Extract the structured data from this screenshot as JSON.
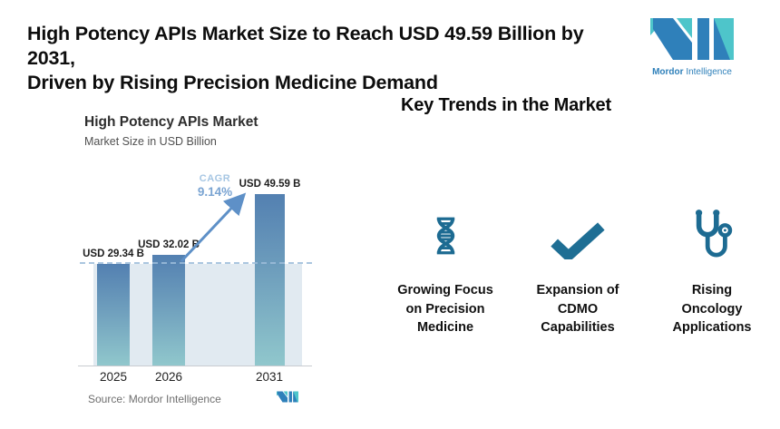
{
  "colors": {
    "logo_teal": "#4ec5ca",
    "logo_blue": "#2f80ba",
    "icon_blue": "#1d6b92",
    "bar_top": "#5380b1",
    "bar_bottom": "#90c7cc",
    "shade": "#e1eaf1",
    "arrow": "#5e90c7"
  },
  "header": {
    "title_line1": "High Potency APIs Market Size to Reach USD 49.59 Billion by 2031,",
    "title_line2": "Driven by Rising Precision Medicine Demand",
    "logo": {
      "brand_bold": "Mordor",
      "brand_regular": "Intelligence"
    }
  },
  "chart": {
    "title": "High Potency APIs Market",
    "subtitle": "Market Size in USD Billion",
    "cagr_label": "CAGR",
    "cagr_value": "9.14%",
    "source": "Source: Mordor Intelligence",
    "bars": [
      {
        "year": "2025",
        "label": "USD 29.34 B"
      },
      {
        "year": "2026",
        "label": "USD 32.02 B"
      },
      {
        "year": "2031",
        "label": "USD 49.59 B"
      }
    ]
  },
  "chart_data": {
    "type": "bar",
    "title": "High Potency APIs Market",
    "subtitle": "Market Size in USD Billion",
    "categories": [
      "2025",
      "2026",
      "2031"
    ],
    "values": [
      29.34,
      32.02,
      49.59
    ],
    "data_labels": [
      "USD 29.34 B",
      "USD 32.02 B",
      "USD 49.59 B"
    ],
    "ylabel": "Market Size in USD Billion",
    "ylim": [
      0,
      53
    ],
    "grid": false,
    "dashed_reference_line_at": 29.34,
    "annotations": [
      "CAGR 9.14%"
    ],
    "source": "Source: Mordor Intelligence"
  },
  "trends": {
    "title": "Key Trends in the Market",
    "items": [
      {
        "icon": "dna-icon",
        "lines": [
          "Growing Focus",
          "on Precision",
          "Medicine"
        ]
      },
      {
        "icon": "checkmark-icon",
        "lines": [
          "Expansion of",
          "CDMO",
          "Capabilities"
        ]
      },
      {
        "icon": "stethoscope-icon",
        "lines": [
          "Rising",
          "Oncology",
          "Applications"
        ]
      }
    ]
  }
}
